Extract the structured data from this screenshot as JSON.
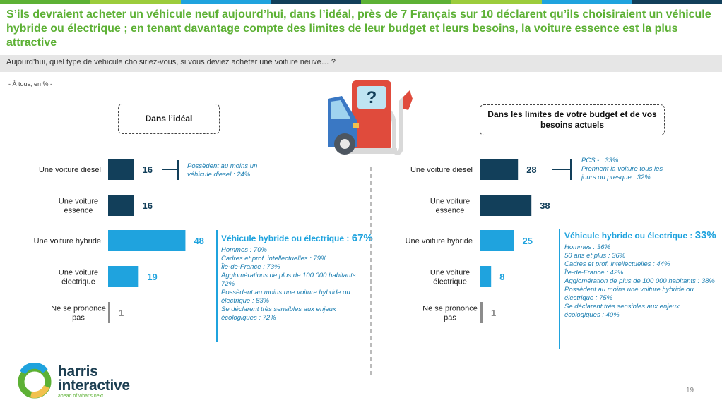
{
  "title": "S’ils devraient acheter un véhicule neuf aujourd’hui, dans l’idéal, près de 7 Français sur 10 déclarent qu’ils choisiraient un véhicule hybride ou électrique ; en tenant davantage compte des limites de leur budget et leurs besoins, la voiture essence est la plus attractive",
  "question": "Aujourd’hui, quel type de véhicule choisiriez-vous, si vous deviez acheter une voiture neuve… ?",
  "base_note": "- À tous, en % -",
  "colors": {
    "title_green": "#5db135",
    "dark_blue": "#123f5a",
    "light_blue": "#1fa3de",
    "gray": "#8c8c8c",
    "question_bg": "#e6e6e6"
  },
  "chart_data": [
    {
      "type": "bar",
      "orientation": "horizontal",
      "title": "Dans l’idéal",
      "categories": [
        "Une voiture diesel",
        "Une voiture essence",
        "Une voiture hybride",
        "Une voiture électrique",
        "Ne se prononce pas"
      ],
      "values": [
        16,
        16,
        48,
        19,
        1
      ],
      "bar_colors": [
        "#123f5a",
        "#123f5a",
        "#1fa3de",
        "#1fa3de",
        "#8c8c8c"
      ]
    },
    {
      "type": "bar",
      "orientation": "horizontal",
      "title": "Dans les limites de votre budget et de vos besoins actuels",
      "categories": [
        "Une voiture diesel",
        "Une voiture essence",
        "Une voiture hybride",
        "Une voiture électrique",
        "Ne se prononce pas"
      ],
      "values": [
        28,
        38,
        25,
        8,
        1
      ],
      "bar_colors": [
        "#123f5a",
        "#123f5a",
        "#1fa3de",
        "#1fa3de",
        "#8c8c8c"
      ]
    }
  ],
  "left_annotations": {
    "diesel_note": [
      "Possèdent au moins un",
      "véhicule diesel : 24%"
    ],
    "group_head": "Véhicule hybride ou électrique :",
    "group_pct": "67%",
    "group_items": [
      "Hommes : 70%",
      "Cadres et prof. intellectuelles : 79%",
      "Île-de-France : 73%",
      "Agglomérations de plus de 100 000 habitants : 72%",
      "Possèdent au moins une voiture hybride ou électrique : 83%",
      "Se déclarent très sensibles aux enjeux écologiques : 72%"
    ]
  },
  "right_annotations": {
    "diesel_note": [
      "PCS - : 33%",
      "Prennent la voiture tous les",
      "jours ou presque : 32%"
    ],
    "group_head": "Véhicule hybride ou électrique :",
    "group_pct": "33%",
    "group_items": [
      "Hommes : 36%",
      "50 ans et plus : 36%",
      "Cadres et prof. intellectuelles : 44%",
      "Île-de-France : 42%",
      "Agglomération de plus de 100 000 habitants : 38%",
      "Possèdent au moins une voiture hybride ou électrique : 75%",
      "Se déclarent très sensibles aux enjeux écologiques : 40%"
    ]
  },
  "logo": {
    "name_line1": "harris",
    "name_line2": "interactive",
    "tagline": "ahead of what’s next"
  },
  "page_number": "19"
}
